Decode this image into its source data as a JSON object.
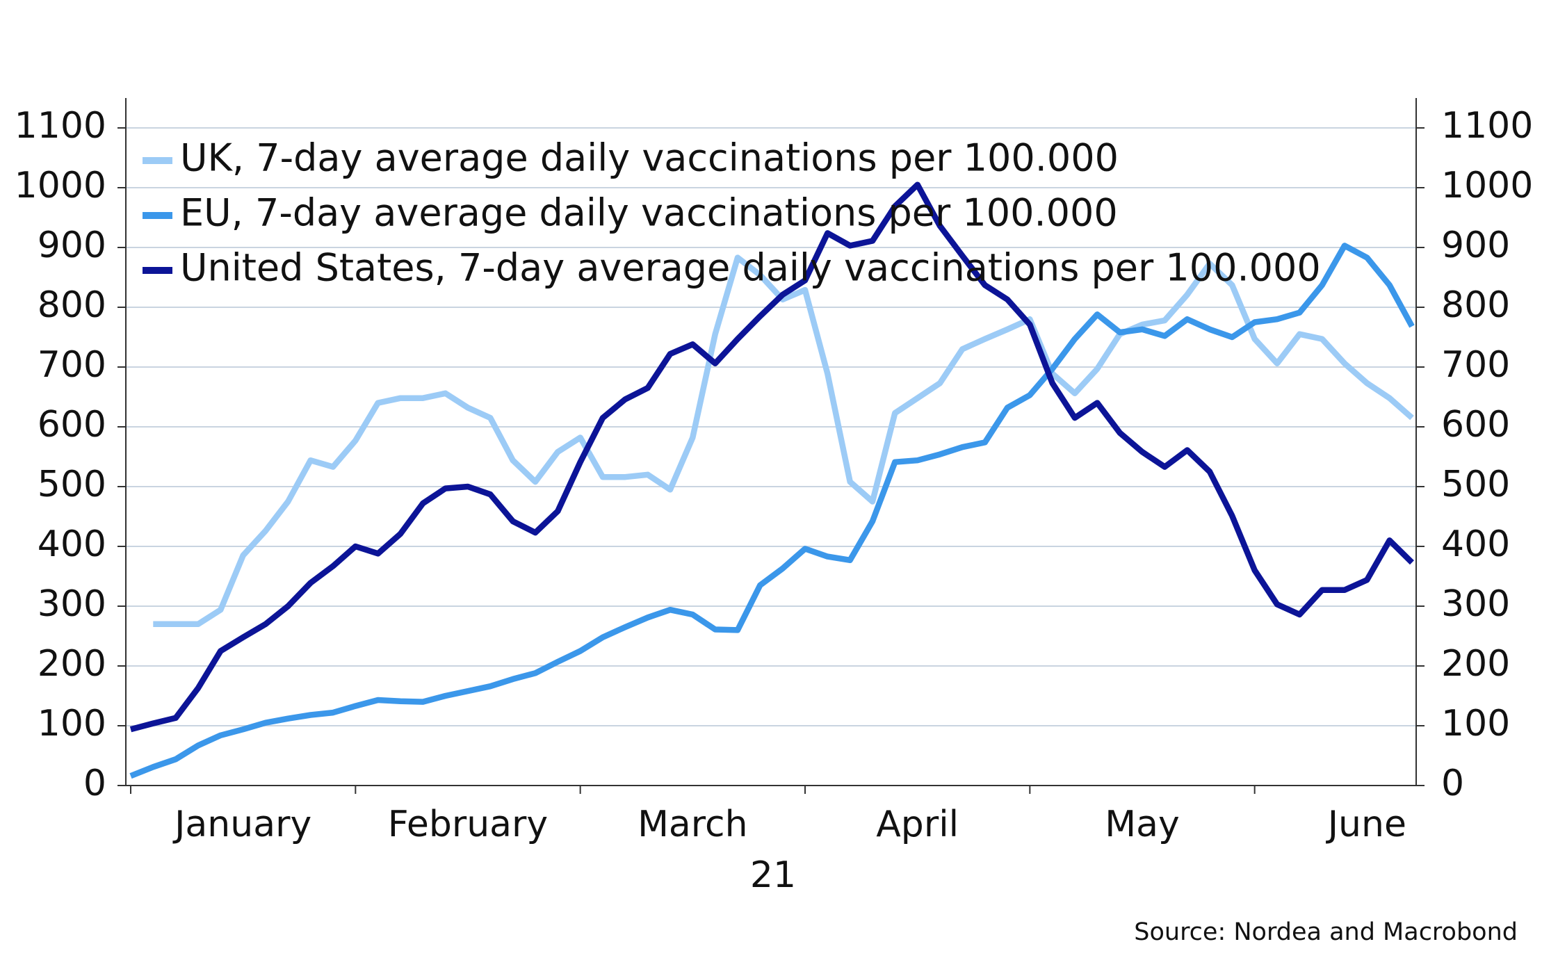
{
  "chart_data": {
    "type": "line",
    "categories": [
      null,
      null,
      null,
      null,
      null,
      "January",
      null,
      null,
      null,
      null,
      null,
      null,
      null,
      null,
      null,
      "February",
      null,
      null,
      null,
      null,
      null,
      null,
      null,
      null,
      null,
      "March",
      null,
      null,
      null,
      null,
      null,
      null,
      null,
      null,
      null,
      "April",
      null,
      null,
      null,
      null,
      null,
      null,
      null,
      null,
      null,
      "May",
      null,
      null,
      null,
      null,
      null,
      null,
      null,
      null,
      null,
      "June",
      null,
      null
    ],
    "xlabel": "21",
    "series": [
      {
        "name": "UK, 7-day average daily vaccinations per 100.000",
        "color": "#9ccbf6",
        "values": [
          null,
          270,
          270,
          270,
          294,
          385,
          426,
          475,
          544,
          533,
          577,
          640,
          648,
          648,
          656,
          632,
          615,
          544,
          508,
          558,
          582,
          516,
          516,
          520,
          495,
          582,
          755,
          883,
          854,
          813,
          829,
          689,
          508,
          475,
          623,
          648,
          673,
          730,
          747,
          763,
          780,
          689,
          656,
          697,
          755,
          771,
          778,
          821,
          873,
          837,
          747,
          706,
          755,
          747,
          706,
          673,
          648,
          615
        ]
      },
      {
        "name": "EU, 7-day average daily vaccinations per 100.000",
        "color": "#3b97ea",
        "values": [
          16,
          31,
          44,
          67,
          84,
          94,
          105,
          112,
          118,
          122,
          133,
          143,
          141,
          140,
          150,
          158,
          166,
          178,
          188,
          207,
          225,
          248,
          265,
          281,
          294,
          286,
          261,
          260,
          335,
          363,
          396,
          383,
          377,
          442,
          541,
          544,
          554,
          566,
          574,
          632,
          653,
          697,
          747,
          788,
          758,
          763,
          752,
          780,
          763,
          750,
          775,
          780,
          791,
          837,
          903,
          883,
          837,
          768
        ]
      },
      {
        "name": "United States, 7-day average daily vaccinations per 100.000",
        "color": "#0c1497",
        "values": [
          94,
          104,
          113,
          163,
          225,
          248,
          270,
          300,
          339,
          367,
          400,
          388,
          421,
          472,
          497,
          500,
          487,
          442,
          423,
          459,
          541,
          615,
          646,
          665,
          722,
          738,
          706,
          747,
          785,
          821,
          845,
          924,
          903,
          911,
          969,
          1005,
          936,
          886,
          837,
          813,
          771,
          673,
          615,
          640,
          590,
          558,
          533,
          561,
          525,
          451,
          360,
          303,
          286,
          327,
          327,
          344,
          410,
          373
        ]
      }
    ],
    "ylim": [
      0,
      1150
    ],
    "yticks": [
      0,
      100,
      200,
      300,
      400,
      500,
      600,
      700,
      800,
      900,
      1000,
      1100
    ],
    "y2lim": [
      0,
      1150
    ],
    "y2ticks": [
      0,
      100,
      200,
      300,
      400,
      500,
      600,
      700,
      800,
      900,
      1000,
      1100
    ],
    "grid": true,
    "legend": "upper left",
    "source": "Source: Nordea and Macrobond"
  }
}
